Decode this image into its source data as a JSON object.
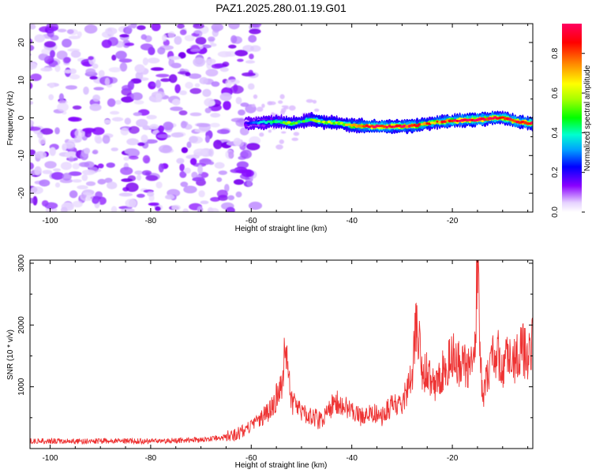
{
  "title": "PAZ1.2025.280.01.19.G01",
  "chart_data": [
    {
      "type": "heatmap",
      "title": "PAZ1.2025.280.01.19.G01",
      "xlabel": "Height of straight line (km)",
      "ylabel": "Frequency (Hz)",
      "xlim": [
        -104,
        -4
      ],
      "ylim": [
        -25,
        25
      ],
      "xticks": [
        -100,
        -80,
        -60,
        -40,
        -20
      ],
      "xtick_labels": [
        "-100",
        "-80",
        "-60",
        "-40",
        "-20"
      ],
      "yticks": [
        -20,
        -10,
        0,
        10,
        20
      ],
      "ytick_labels": [
        "-20",
        "-10",
        "0",
        "10",
        "20"
      ],
      "noise_region_km": [
        -104,
        -60
      ],
      "signal_ridge": {
        "x": [
          -61,
          -58,
          -55,
          -52,
          -50,
          -48,
          -45,
          -42,
          -40,
          -37,
          -35,
          -32,
          -30,
          -27,
          -25,
          -22,
          -20,
          -17,
          -15,
          -12,
          -10,
          -7,
          -4
        ],
        "freq_hz": [
          -1.5,
          -1.2,
          -1.0,
          -1.5,
          -1.0,
          -0.5,
          -1.2,
          -1.5,
          -2.0,
          -2.2,
          -2.3,
          -2.3,
          -2.2,
          -2.0,
          -1.5,
          -1.0,
          -0.8,
          -0.6,
          -0.5,
          0.0,
          0.0,
          -1.0,
          -1.5
        ],
        "amplitude": [
          0.2,
          0.35,
          0.45,
          0.55,
          0.45,
          0.5,
          0.6,
          0.55,
          0.7,
          0.85,
          0.92,
          0.9,
          0.9,
          0.8,
          0.75,
          0.8,
          0.85,
          0.95,
          0.95,
          0.9,
          0.85,
          0.9,
          0.95
        ]
      },
      "colorbar": {
        "label": "Normalized spectral amplitude",
        "range": [
          0.0,
          0.95
        ],
        "ticks": [
          0.0,
          0.2,
          0.4,
          0.6,
          0.8
        ],
        "tick_labels": [
          "0.0",
          "0.2",
          "0.4",
          "0.6",
          "0.8"
        ],
        "colors": [
          "#ffffff",
          "#d9b8ff",
          "#8a00ff",
          "#0000ff",
          "#00a0ff",
          "#00ffd0",
          "#00ff00",
          "#a8ff00",
          "#ffff00",
          "#ff9000",
          "#ff0000",
          "#ff0060"
        ]
      }
    },
    {
      "type": "line",
      "xlabel": "Height of straight line (km)",
      "ylabel": "SNR (10 * v/v)",
      "xlim": [
        -104,
        -4
      ],
      "ylim": [
        0,
        3050
      ],
      "xticks": [
        -100,
        -80,
        -60,
        -40,
        -20
      ],
      "xtick_labels": [
        "-100",
        "-80",
        "-60",
        "-40",
        "-20"
      ],
      "yticks": [
        1000,
        2000,
        3000
      ],
      "ytick_labels": [
        "1000",
        "2000",
        "3000"
      ],
      "series": [
        {
          "name": "SNR",
          "color": "#ee3333",
          "x": [
            -104,
            -100,
            -95,
            -90,
            -85,
            -80,
            -75,
            -70,
            -65,
            -62,
            -60,
            -58,
            -56,
            -54,
            -53,
            -52,
            -50,
            -48,
            -46,
            -44,
            -42,
            -40,
            -38,
            -36,
            -34,
            -32,
            -30,
            -29,
            -28,
            -27,
            -26,
            -25,
            -24,
            -22,
            -20,
            -19,
            -18,
            -17,
            -16,
            -15.5,
            -15,
            -14.5,
            -14,
            -13,
            -12,
            -11,
            -10,
            -9,
            -8,
            -7,
            -6,
            -5,
            -4
          ],
          "y": [
            120,
            120,
            115,
            120,
            125,
            120,
            130,
            140,
            180,
            260,
            380,
            480,
            650,
            1000,
            1720,
            750,
            600,
            520,
            450,
            700,
            760,
            620,
            500,
            580,
            520,
            720,
            650,
            980,
            1250,
            2150,
            1200,
            1300,
            1000,
            1250,
            1500,
            1350,
            1450,
            1280,
            1300,
            1750,
            3020,
            1800,
            800,
            1200,
            1600,
            1550,
            1300,
            1450,
            1350,
            1580,
            1650,
            1400,
            1850
          ]
        }
      ]
    }
  ]
}
